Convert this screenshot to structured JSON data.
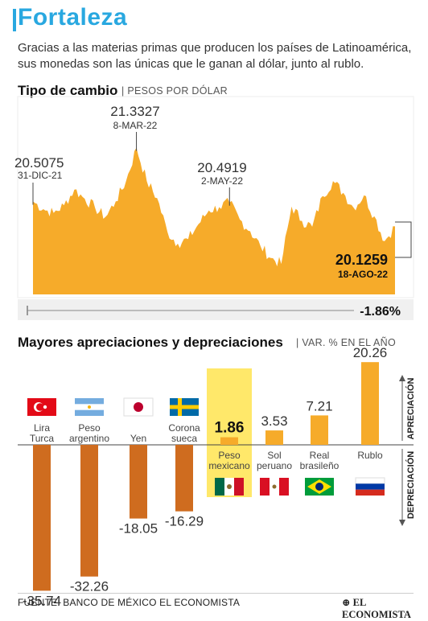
{
  "headline": "Fortaleza",
  "dek": "Gracias a las materias primas que producen los países de Latinoamérica, sus monedas son las únicas que le ganan al dólar, junto al rublo.",
  "section1": {
    "title": "Tipo de cambio",
    "subtitle": "| PESOS POR DÓLAR"
  },
  "section2": {
    "title": "Mayores apreciaciones y depreciaciones",
    "subtitle": "| VAR. % EN EL AÑO"
  },
  "colors": {
    "accent": "#29a8e0",
    "area": "#f6ab2a",
    "bar": "#cf6c1f",
    "highlight": "#ffe86a"
  },
  "chart_data": [
    {
      "type": "area",
      "title": "Tipo de cambio",
      "ylabel": "PESOS POR DÓLAR",
      "ylim": [
        19.6,
        21.5
      ],
      "points": [
        [
          "31-DIC-21",
          20.5075
        ],
        [
          "7-ENE-22",
          20.39
        ],
        [
          "14-ENE-22",
          20.33
        ],
        [
          "21-ENE-22",
          20.45
        ],
        [
          "28-ENE-22",
          20.69
        ],
        [
          "4-FEB-22",
          20.55
        ],
        [
          "11-FEB-22",
          20.41
        ],
        [
          "18-FEB-22",
          20.27
        ],
        [
          "25-FEB-22",
          20.51
        ],
        [
          "2-MAR-22",
          20.82
        ],
        [
          "8-MAR-22",
          21.3327
        ],
        [
          "11-MAR-22",
          20.82
        ],
        [
          "18-MAR-22",
          20.56
        ],
        [
          "25-MAR-22",
          20.04
        ],
        [
          "1-ABR-22",
          19.86
        ],
        [
          "8-ABR-22",
          19.93
        ],
        [
          "15-ABR-22",
          20.16
        ],
        [
          "22-ABR-22",
          20.37
        ],
        [
          "29-ABR-22",
          20.42
        ],
        [
          "2-MAY-22",
          20.4919
        ],
        [
          "9-MAY-22",
          20.23
        ],
        [
          "16-MAY-22",
          20.05
        ],
        [
          "23-MAY-22",
          19.82
        ],
        [
          "30-MAY-22",
          19.64
        ],
        [
          "6-JUN-22",
          19.55
        ],
        [
          "13-JUN-22",
          20.43
        ],
        [
          "20-JUN-22",
          20.21
        ],
        [
          "27-JUN-22",
          20.12
        ],
        [
          "4-JUL-22",
          20.59
        ],
        [
          "11-JUL-22",
          20.82
        ],
        [
          "18-JUL-22",
          20.64
        ],
        [
          "25-JUL-22",
          20.41
        ],
        [
          "1-AGO-22",
          20.6
        ],
        [
          "8-AGO-22",
          20.28
        ],
        [
          "12-AGO-22",
          19.9
        ],
        [
          "18-AGO-22",
          20.1259
        ]
      ],
      "annotations": [
        {
          "value": "20.5075",
          "date": "31-DIC-21"
        },
        {
          "value": "21.3327",
          "date": "8-MAR-22"
        },
        {
          "value": "20.4919",
          "date": "2-MAY-22"
        },
        {
          "value": "20.1259",
          "date": "18-AGO-22"
        }
      ],
      "change": "-1.86%"
    },
    {
      "type": "bar",
      "title": "Mayores apreciaciones y depreciaciones",
      "ylabel": "VAR. % EN EL AÑO",
      "ylim": [
        -40,
        22
      ],
      "axis_labels": {
        "positive": "APRECIACIÓN",
        "negative": "DEPRECIACIÓN"
      },
      "categories": [
        {
          "label": "Lira Turca",
          "lines": [
            "Lira",
            "Turca"
          ],
          "value": -35.74,
          "display": "-35.74",
          "flag": "turkey-flag"
        },
        {
          "label": "Peso argentino",
          "lines": [
            "Peso",
            "argentino"
          ],
          "value": -32.26,
          "display": "-32.26",
          "flag": "argentina-flag"
        },
        {
          "label": "Yen",
          "lines": [
            "Yen"
          ],
          "value": -18.05,
          "display": "-18.05",
          "flag": "japan-flag"
        },
        {
          "label": "Corona sueca",
          "lines": [
            "Corona",
            "sueca"
          ],
          "value": -16.29,
          "display": "-16.29",
          "flag": "sweden-flag"
        },
        {
          "label": "Peso mexicano",
          "lines": [
            "Peso",
            "mexicano"
          ],
          "value": 1.86,
          "display": "1.86",
          "flag": "mexico-flag",
          "highlight": true
        },
        {
          "label": "Sol peruano",
          "lines": [
            "Sol",
            "peruano"
          ],
          "value": 3.53,
          "display": "3.53",
          "flag": "peru-flag"
        },
        {
          "label": "Real brasileño",
          "lines": [
            "Real",
            "brasileño"
          ],
          "value": 7.21,
          "display": "7.21",
          "flag": "brazil-flag"
        },
        {
          "label": "Rublo",
          "lines": [
            "Rublo"
          ],
          "value": 20.26,
          "display": "20.26",
          "flag": "russia-flag"
        }
      ]
    }
  ],
  "footer": {
    "source": "FUENTE: BANCO DE MÉXICO EL ECONOMISTA",
    "brand": "EL ECONOMISTA"
  }
}
